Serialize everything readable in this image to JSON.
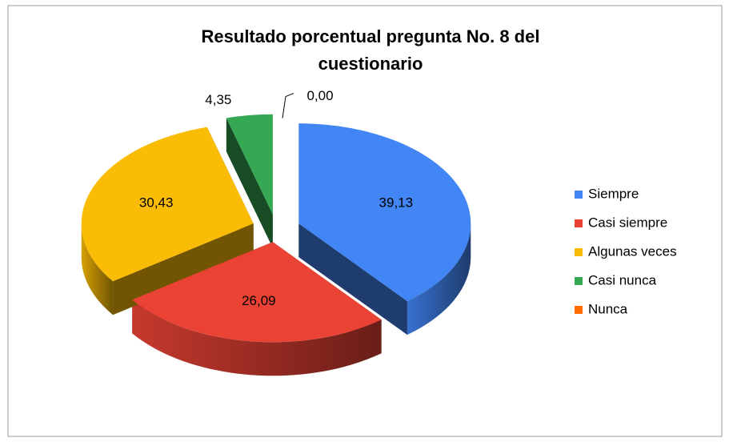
{
  "chart_data": {
    "type": "pie",
    "title": "Resultado porcentual pregunta No. 8 del cuestionario",
    "categories": [
      "Siempre",
      "Casi siempre",
      "Algunas veces",
      "Casi nunca",
      "Nunca"
    ],
    "values": [
      39.13,
      26.09,
      30.43,
      4.35,
      0.0
    ],
    "value_labels": [
      "39,13",
      "26,09",
      "30,43",
      "4,35",
      "0,00"
    ],
    "colors": [
      "#4285f4",
      "#ea4335",
      "#fbbc05",
      "#34a853",
      "#ff6d01"
    ],
    "legend": "right"
  }
}
